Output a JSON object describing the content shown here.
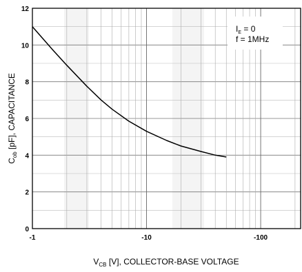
{
  "chart_data": {
    "type": "line",
    "x_scale": "log",
    "xlim": [
      -1,
      -100
    ],
    "ylim": [
      0,
      12
    ],
    "x_ticks": [
      {
        "value": 1,
        "label": "-1"
      },
      {
        "value": 10,
        "label": "-10"
      },
      {
        "value": 100,
        "label": "-100"
      }
    ],
    "y_ticks": [
      {
        "value": 0,
        "label": "0"
      },
      {
        "value": 2,
        "label": "2"
      },
      {
        "value": 4,
        "label": "4"
      },
      {
        "value": 6,
        "label": "6"
      },
      {
        "value": 8,
        "label": "8"
      },
      {
        "value": 10,
        "label": "10"
      },
      {
        "value": 12,
        "label": "12"
      }
    ],
    "xlabel": {
      "main": "V",
      "sub": "CB",
      "rest": " [V], COLLECTOR-BASE VOLTAGE"
    },
    "ylabel": {
      "main": "C",
      "sub": "ob",
      "rest": " [pF], CAPACITANCE"
    },
    "grid": true,
    "legend_position": "top-right",
    "conditions": [
      {
        "main": "I",
        "sub": "E",
        "rest": " = 0"
      },
      {
        "main": "f = 1MHz",
        "sub": "",
        "rest": ""
      }
    ],
    "series": [
      {
        "x": [
          -1,
          -1.5,
          -2,
          -3,
          -4,
          -5,
          -7,
          -10,
          -15,
          -20,
          -30,
          -40,
          -50
        ],
        "y": [
          11.0,
          9.75,
          8.9,
          7.75,
          7.0,
          6.5,
          5.85,
          5.3,
          4.8,
          4.5,
          4.2,
          4.0,
          3.9
        ]
      }
    ]
  }
}
